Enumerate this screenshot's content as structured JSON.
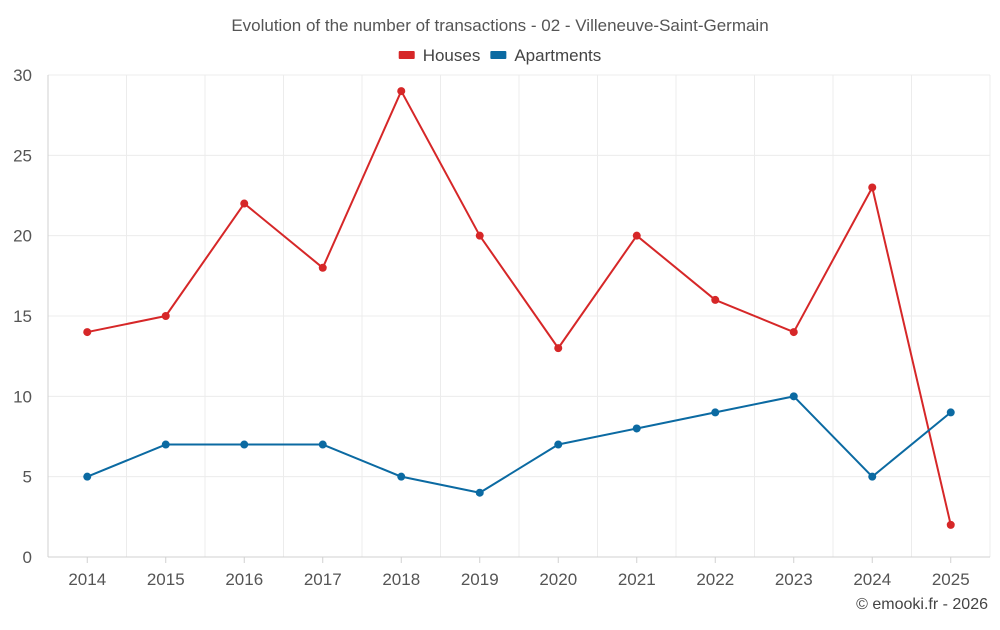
{
  "chart_data": {
    "type": "line",
    "title": "Evolution of the number of transactions - 02 - Villeneuve-Saint-Germain",
    "categories": [
      "2014",
      "2015",
      "2016",
      "2017",
      "2018",
      "2019",
      "2020",
      "2021",
      "2022",
      "2023",
      "2024",
      "2025"
    ],
    "series": [
      {
        "name": "Houses",
        "color": "#d62728",
        "values": [
          14,
          15,
          22,
          18,
          29,
          20,
          13,
          20,
          16,
          14,
          23,
          2
        ]
      },
      {
        "name": "Apartments",
        "color": "#0b6aa2",
        "values": [
          5,
          7,
          7,
          7,
          5,
          4,
          7,
          8,
          9,
          10,
          5,
          9
        ]
      }
    ],
    "ylim": [
      0,
      30
    ],
    "yticks": [
      0,
      5,
      10,
      15,
      20,
      25,
      30
    ],
    "xlabel": "",
    "ylabel": "",
    "grid": true,
    "legend_position": "top-center"
  },
  "credit": "© emooki.fr - 2026"
}
